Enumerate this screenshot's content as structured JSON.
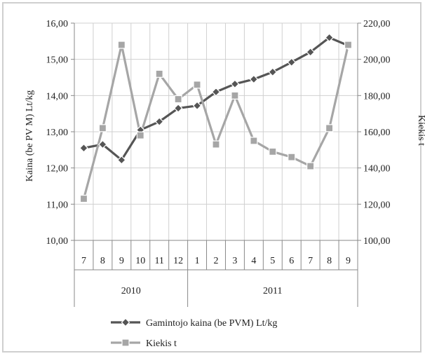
{
  "chart_data": {
    "type": "line",
    "categories": [
      "7",
      "8",
      "9",
      "10",
      "11",
      "12",
      "1",
      "2",
      "3",
      "4",
      "5",
      "6",
      "7",
      "8",
      "9"
    ],
    "groups": [
      {
        "label": "2010",
        "count": 6
      },
      {
        "label": "2011",
        "count": 9
      }
    ],
    "y_left": {
      "label": "Kaina (be PV M) Lt/kg",
      "min": 10,
      "max": 16,
      "step": 1,
      "ticks": [
        "10,00",
        "11,00",
        "12,00",
        "13,00",
        "14,00",
        "15,00",
        "16,00"
      ]
    },
    "y_right": {
      "label": "Kiekis t",
      "min": 100,
      "max": 220,
      "step": 20,
      "ticks": [
        "100,00",
        "120,00",
        "140,00",
        "160,00",
        "180,00",
        "200,00",
        "220,00"
      ]
    },
    "grid": true,
    "legend_position": "bottom-center",
    "series": [
      {
        "name": "Gamintojo kaina (be PVM) Lt/kg",
        "axis": "left",
        "marker": "diamond",
        "color": "#555555",
        "values": [
          12.55,
          12.65,
          12.22,
          13.05,
          13.28,
          13.65,
          13.72,
          14.1,
          14.32,
          14.45,
          14.65,
          14.92,
          15.2,
          15.6,
          15.38
        ]
      },
      {
        "name": "Kiekis t",
        "axis": "right",
        "marker": "square",
        "color": "#a6a6a6",
        "values": [
          123,
          162,
          208,
          158,
          192,
          178,
          186,
          153,
          180,
          155,
          149,
          146,
          141,
          162,
          208
        ]
      }
    ]
  }
}
